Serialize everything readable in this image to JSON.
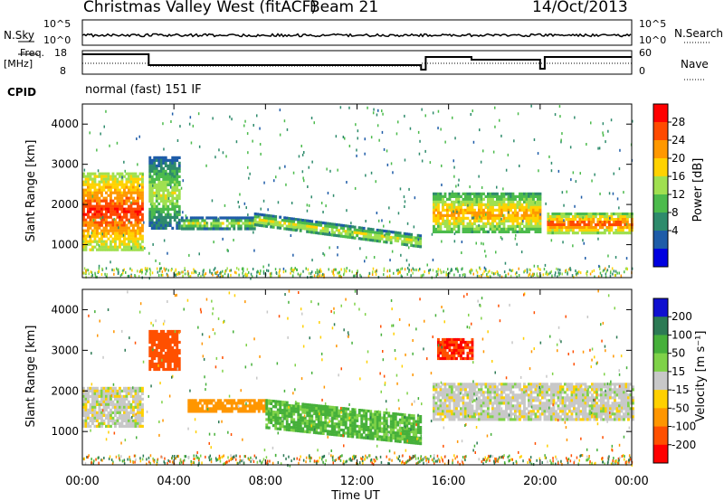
{
  "header": {
    "station": "Christmas Valley West (fitACF)",
    "beam": "Beam 21",
    "date": "14/Oct/2013"
  },
  "top_panels": {
    "nsky_label": "N.Sky",
    "nsky_ticks": [
      "10^5",
      "10^0"
    ],
    "nsearch_label": "N.Search",
    "freq_label_1": "Freq.",
    "freq_label_2": "[MHz]",
    "freq_ticks": [
      "18",
      "8"
    ],
    "nave_ticks": [
      "60",
      "0"
    ],
    "nave_label": "Nave",
    "cpid_label": "CPID",
    "cpid_value": "normal (fast) 151 IF"
  },
  "chart_data": [
    {
      "type": "heatmap",
      "name": "power",
      "ylabel": "Slant Range [km]",
      "yticks": [
        1000,
        2000,
        3000,
        4000
      ],
      "ylim": [
        180,
        4500
      ],
      "xlim": [
        0,
        24
      ],
      "colorbar": {
        "label": "Power [dB]",
        "ticks": [
          "28",
          "24",
          "20",
          "16",
          "12",
          "8",
          "4"
        ],
        "colors": [
          "#ff0000",
          "#ff4a00",
          "#ff9800",
          "#ffd200",
          "#a0e050",
          "#4cbb4c",
          "#2e8b6c",
          "#1e5ca8",
          "#0000e0"
        ]
      },
      "echo_bands": [
        {
          "t0": 0.0,
          "t1": 2.6,
          "r0": 900,
          "r1": 2800,
          "level": 24
        },
        {
          "t0": 2.9,
          "t1": 4.2,
          "r0": 1400,
          "r1": 3200,
          "level": 12
        },
        {
          "t0": 4.3,
          "t1": 7.5,
          "r0": 1400,
          "r1": 1700,
          "level": 12
        },
        {
          "t0": 7.5,
          "t1": 14.8,
          "r0": 1000,
          "r1": 1700,
          "level": 14
        },
        {
          "t0": 15.3,
          "t1": 20.0,
          "r0": 1300,
          "r1": 2300,
          "level": 18
        },
        {
          "t0": 20.3,
          "t1": 24.0,
          "r0": 1300,
          "r1": 1800,
          "level": 22
        }
      ]
    },
    {
      "type": "heatmap",
      "name": "velocity",
      "ylabel": "Slant Range [km]",
      "xlabel": "Time UT",
      "xticks": [
        "00:00",
        "04:00",
        "08:00",
        "12:00",
        "16:00",
        "20:00",
        "00:00"
      ],
      "yticks": [
        1000,
        2000,
        3000,
        4000
      ],
      "ylim": [
        180,
        4500
      ],
      "xlim": [
        0,
        24
      ],
      "colorbar": {
        "label": "Velocity [m s⁻¹]",
        "ticks": [
          "200",
          "100",
          "50",
          "15",
          "-15",
          "-50",
          "-100",
          "-200"
        ],
        "colors": [
          "#1010d0",
          "#2c7a54",
          "#46b03a",
          "#7fd248",
          "#c8c8c8",
          "#ffd000",
          "#ff9600",
          "#ff5000",
          "#ff0000"
        ]
      },
      "echo_bands": [
        {
          "t0": 0.0,
          "t1": 2.6,
          "r0": 1100,
          "r1": 2100,
          "level": 0
        },
        {
          "t0": 2.9,
          "t1": 4.2,
          "r0": 2500,
          "r1": 3500,
          "level": -150
        },
        {
          "t0": 4.6,
          "t1": 8.0,
          "r0": 1500,
          "r1": 1800,
          "level": -80
        },
        {
          "t0": 8.0,
          "t1": 14.8,
          "r0": 1000,
          "r1": 1800,
          "level": 60
        },
        {
          "t0": 15.5,
          "t1": 17.0,
          "r0": 2800,
          "r1": 3300,
          "level": -200
        },
        {
          "t0": 15.3,
          "t1": 24.0,
          "r0": 1300,
          "r1": 2200,
          "level": 0
        }
      ]
    }
  ]
}
